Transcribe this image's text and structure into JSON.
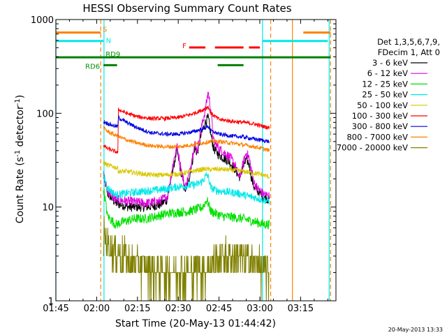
{
  "chart_data": {
    "type": "line",
    "title": "HESSI Observing Summary Count Rates",
    "xlabel": "Start Time (20-May-13 01:44:42)",
    "ylabel": "Count Rate (s⁻¹ detector⁻¹)",
    "ylabel_main": "Count Rate (s",
    "ylabel_sup1": "-1",
    "ylabel_mid": " detector",
    "ylabel_sup2": "-1",
    "ylabel_end": ")",
    "yscale": "log",
    "xlim_minutes": [
      105,
      208
    ],
    "ylim": [
      1,
      1000
    ],
    "x_ticks": [
      {
        "label": "01:45",
        "minutes": 105
      },
      {
        "label": "02:00",
        "minutes": 120
      },
      {
        "label": "02:15",
        "minutes": 135
      },
      {
        "label": "02:30",
        "minutes": 150
      },
      {
        "label": "02:45",
        "minutes": 165
      },
      {
        "label": "03:00",
        "minutes": 180
      },
      {
        "label": "03:15",
        "minutes": 195
      }
    ],
    "y_ticks": [
      {
        "label": "1",
        "value": 1
      },
      {
        "label": "10",
        "value": 10
      },
      {
        "label": "100",
        "value": 100
      },
      {
        "label": "1000",
        "value": 1000
      }
    ],
    "legend": {
      "header1": "Det 1,3,5,6,7,9,",
      "header2": "FDecim 1, Att 0",
      "placement": "right"
    },
    "date_stamp": "20-May-2013 13:33",
    "data_start_minutes": 122.5,
    "data_end_minutes": 183.5,
    "series": [
      {
        "name": "3 - 6 keV",
        "color": "#000000",
        "points": [
          [
            122.5,
            22
          ],
          [
            124,
            14
          ],
          [
            127,
            11
          ],
          [
            132,
            10
          ],
          [
            138,
            10
          ],
          [
            143,
            10.5
          ],
          [
            146,
            12
          ],
          [
            148,
            25
          ],
          [
            149.5,
            40
          ],
          [
            151,
            24
          ],
          [
            152.5,
            15
          ],
          [
            154,
            20
          ],
          [
            156,
            42
          ],
          [
            157,
            38
          ],
          [
            158.5,
            60
          ],
          [
            160,
            80
          ],
          [
            161,
            90
          ],
          [
            162,
            60
          ],
          [
            163,
            42
          ],
          [
            165,
            36
          ],
          [
            167,
            33
          ],
          [
            169,
            30
          ],
          [
            171,
            25
          ],
          [
            172.5,
            21
          ],
          [
            174,
            27
          ],
          [
            175,
            32
          ],
          [
            176,
            29
          ],
          [
            177,
            20
          ],
          [
            178,
            16
          ],
          [
            179,
            15
          ],
          [
            180,
            14
          ],
          [
            181,
            13
          ],
          [
            183.5,
            12
          ]
        ]
      },
      {
        "name": "6 - 12 keV",
        "color": "#e000e0",
        "points": [
          [
            122.5,
            22
          ],
          [
            124,
            15
          ],
          [
            127,
            12
          ],
          [
            132,
            11.5
          ],
          [
            138,
            11
          ],
          [
            143,
            11.5
          ],
          [
            146,
            13
          ],
          [
            148,
            28
          ],
          [
            149.5,
            45
          ],
          [
            151,
            26
          ],
          [
            152.5,
            16
          ],
          [
            154,
            22
          ],
          [
            156,
            48
          ],
          [
            157,
            40
          ],
          [
            158.5,
            70
          ],
          [
            160,
            110
          ],
          [
            161,
            170
          ],
          [
            162,
            110
          ],
          [
            163,
            50
          ],
          [
            165,
            42
          ],
          [
            167,
            38
          ],
          [
            169,
            34
          ],
          [
            171,
            28
          ],
          [
            172.5,
            20
          ],
          [
            174,
            30
          ],
          [
            175,
            38
          ],
          [
            176,
            34
          ],
          [
            177,
            24
          ],
          [
            178,
            18
          ],
          [
            179,
            16
          ],
          [
            180,
            15
          ],
          [
            181,
            14
          ],
          [
            183.5,
            13
          ]
        ]
      },
      {
        "name": "12 - 25 keV",
        "color": "#00e000",
        "points": [
          [
            122.5,
            16
          ],
          [
            124,
            8
          ],
          [
            127,
            6.5
          ],
          [
            130,
            7
          ],
          [
            134,
            7.5
          ],
          [
            138,
            7.5
          ],
          [
            142,
            8
          ],
          [
            146,
            8.5
          ],
          [
            150,
            8.8
          ],
          [
            154,
            9
          ],
          [
            157,
            9.5
          ],
          [
            159,
            10
          ],
          [
            160.5,
            12
          ],
          [
            161,
            11
          ],
          [
            162,
            9
          ],
          [
            164,
            8.5
          ],
          [
            166,
            8
          ],
          [
            170,
            7.8
          ],
          [
            174,
            7.5
          ],
          [
            176,
            7.2
          ],
          [
            178,
            7
          ],
          [
            181,
            6.6
          ],
          [
            183.5,
            6.5
          ]
        ]
      },
      {
        "name": "25 - 50 keV",
        "color": "#00e8e8",
        "points": [
          [
            122.5,
            22
          ],
          [
            124,
            16
          ],
          [
            127,
            13.5
          ],
          [
            131,
            14
          ],
          [
            135,
            14.5
          ],
          [
            140,
            15
          ],
          [
            145,
            15.5
          ],
          [
            150,
            16.5
          ],
          [
            154,
            17
          ],
          [
            157,
            17.5
          ],
          [
            159,
            19
          ],
          [
            160.5,
            22
          ],
          [
            161,
            21
          ],
          [
            162,
            16
          ],
          [
            164,
            15
          ],
          [
            168,
            14.5
          ],
          [
            172,
            14
          ],
          [
            176,
            13
          ],
          [
            179,
            12.5
          ],
          [
            181,
            12
          ],
          [
            183.5,
            11.5
          ]
        ]
      },
      {
        "name": "50 - 100 keV",
        "color": "#d8c800",
        "points": [
          [
            122.5,
            30
          ],
          [
            124,
            28
          ],
          [
            126,
            27
          ],
          [
            127.8,
            26
          ],
          [
            128,
            24
          ],
          [
            131,
            24
          ],
          [
            135,
            23
          ],
          [
            140,
            22
          ],
          [
            145,
            22
          ],
          [
            150,
            22.5
          ],
          [
            155,
            24
          ],
          [
            158,
            25
          ],
          [
            160,
            25.5
          ],
          [
            162,
            25
          ],
          [
            164,
            25.5
          ],
          [
            168,
            25
          ],
          [
            172,
            24.5
          ],
          [
            176,
            23.5
          ],
          [
            180,
            22.5
          ],
          [
            183.5,
            21
          ]
        ]
      },
      {
        "name": "100 - 300 keV",
        "color": "#ff0000",
        "points": [
          [
            122.5,
            45
          ],
          [
            124,
            42
          ],
          [
            126,
            40
          ],
          [
            127.8,
            38
          ],
          [
            128,
            110
          ],
          [
            131,
            100
          ],
          [
            135,
            92
          ],
          [
            140,
            88
          ],
          [
            145,
            88
          ],
          [
            150,
            90
          ],
          [
            155,
            98
          ],
          [
            158,
            106
          ],
          [
            160,
            112
          ],
          [
            161,
            118
          ],
          [
            162,
            100
          ],
          [
            165,
            86
          ],
          [
            170,
            82
          ],
          [
            174,
            80
          ],
          [
            178,
            77
          ],
          [
            180,
            74
          ],
          [
            183.5,
            70
          ]
        ]
      },
      {
        "name": "300 - 800 keV",
        "color": "#0000e0",
        "points": [
          [
            122.5,
            82
          ],
          [
            124,
            78
          ],
          [
            126,
            74
          ],
          [
            127.8,
            72
          ],
          [
            128,
            90
          ],
          [
            131,
            80
          ],
          [
            135,
            70
          ],
          [
            140,
            62
          ],
          [
            145,
            60
          ],
          [
            150,
            60
          ],
          [
            155,
            63
          ],
          [
            158,
            67
          ],
          [
            160,
            70
          ],
          [
            161,
            73
          ],
          [
            162,
            65
          ],
          [
            165,
            60
          ],
          [
            170,
            57
          ],
          [
            174,
            56
          ],
          [
            178,
            53
          ],
          [
            180,
            52
          ],
          [
            183.5,
            50
          ]
        ]
      },
      {
        "name": "800 - 7000 keV",
        "color": "#ff8000",
        "points": [
          [
            122.5,
            70
          ],
          [
            124,
            64
          ],
          [
            127,
            58
          ],
          [
            131,
            52
          ],
          [
            135,
            48
          ],
          [
            140,
            45
          ],
          [
            145,
            44
          ],
          [
            150,
            44
          ],
          [
            155,
            46
          ],
          [
            158,
            48
          ],
          [
            160,
            49
          ],
          [
            162,
            50
          ],
          [
            165,
            50
          ],
          [
            170,
            48
          ],
          [
            174,
            46
          ],
          [
            178,
            44
          ],
          [
            181,
            42
          ],
          [
            183.5,
            40
          ]
        ]
      },
      {
        "name": "7000 - 20000 keV",
        "color": "#808000",
        "points": [
          [
            122.5,
            5
          ],
          [
            124,
            4.2
          ],
          [
            127,
            3.3
          ],
          [
            130,
            3
          ],
          [
            133,
            2.5
          ],
          [
            136,
            2.3
          ],
          [
            140,
            2.2
          ],
          [
            144,
            2
          ],
          [
            148,
            2
          ],
          [
            152,
            2
          ],
          [
            156,
            2
          ],
          [
            160,
            2.2
          ],
          [
            163,
            2.5
          ],
          [
            166,
            3
          ],
          [
            170,
            3
          ],
          [
            174,
            2.8
          ],
          [
            178,
            2.5
          ],
          [
            181,
            2.2
          ],
          [
            183.5,
            2
          ]
        ]
      }
    ],
    "flags": [
      {
        "label": "S",
        "label_color": "#ff8000",
        "color": "#ff8000",
        "y_frac": 0.045,
        "segments": [
          [
            105,
            121.5
          ],
          [
            196,
            206
          ]
        ]
      },
      {
        "label": "N",
        "label_color": "#00e8e8",
        "color": "#00e8e8",
        "y_frac": 0.075,
        "segments": [
          [
            105,
            122.5
          ],
          [
            181,
            205
          ]
        ]
      },
      {
        "label": "RD9",
        "label_color": "#009000",
        "color": "#008000",
        "y_frac": 0.133,
        "segments": [
          [
            105,
            206
          ]
        ]
      },
      {
        "label": "RD6",
        "label_color": "#009000",
        "color": "#008000",
        "y_frac": 0.161,
        "segments": [
          [
            122.5,
            127.5
          ],
          [
            164.5,
            174
          ]
        ]
      },
      {
        "label": "F",
        "label_color": "#ff0000",
        "color": "#ff0000",
        "y_frac": 0.098,
        "segments": [
          [
            154,
            160
          ],
          [
            163.5,
            174
          ],
          [
            176,
            180
          ]
        ]
      }
    ],
    "vertical_markers": [
      {
        "minutes": 105,
        "color": "#00e8e8",
        "dashed": false
      },
      {
        "minutes": 121.5,
        "color": "#ff8000",
        "dashed": true
      },
      {
        "minutes": 122.7,
        "color": "#00e8e8",
        "dashed": false
      },
      {
        "minutes": 181,
        "color": "#00e8e8",
        "dashed": false
      },
      {
        "minutes": 184,
        "color": "#ff8000",
        "dashed": true
      },
      {
        "minutes": 192,
        "color": "#ff8000",
        "dashed": false
      },
      {
        "minutes": 205.5,
        "color": "#00e8e8",
        "dashed": false
      },
      {
        "minutes": 206,
        "color": "#ff8000",
        "dashed": true
      }
    ]
  }
}
